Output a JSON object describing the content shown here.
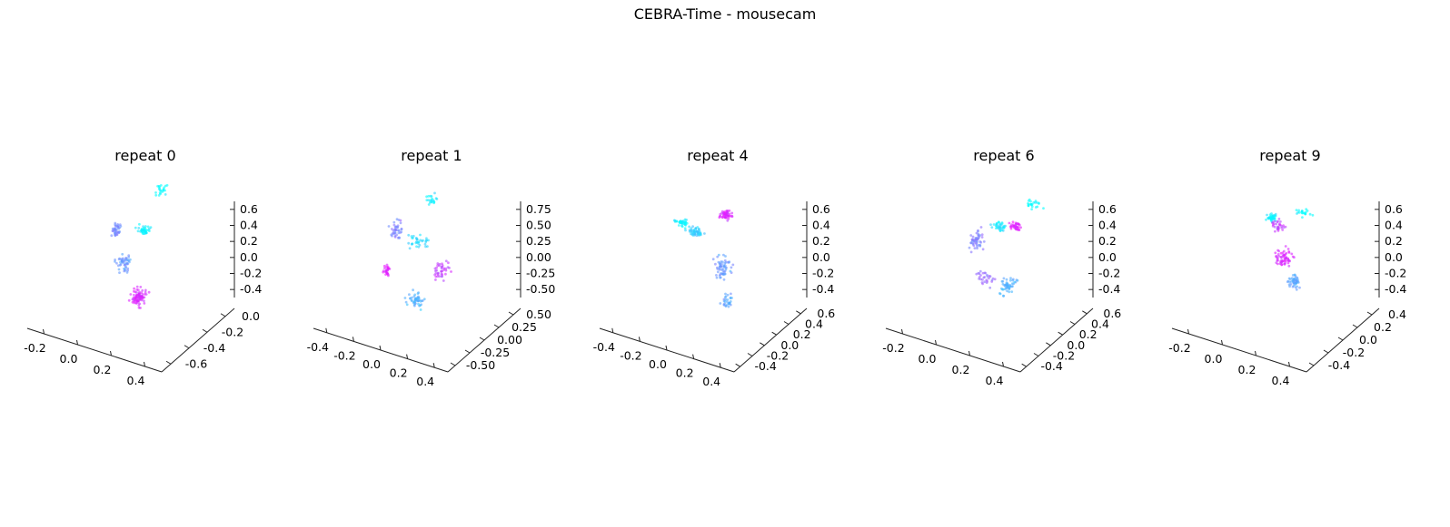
{
  "figure": {
    "title": "CEBRA-Time - mousecam"
  },
  "chart_data": [
    {
      "type": "scatter",
      "title": "repeat 0",
      "colormap": [
        "#00ffff",
        "#ff00ff"
      ],
      "x_ticks": [
        "-0.2",
        "0.0",
        "0.2",
        "0.4"
      ],
      "y_ticks": [
        "-0.6",
        "-0.4",
        "-0.2",
        "0.0"
      ],
      "z_ticks": [
        "-0.4",
        "-0.2",
        "0.0",
        "0.2",
        "0.4",
        "0.6"
      ],
      "clusters": [
        {
          "x": -0.22,
          "y": 0.1,
          "z": 0.12,
          "n": 40,
          "c": 0.45,
          "sx": 0.03,
          "sy": 0.05,
          "sz": 0.06
        },
        {
          "x": 0.08,
          "y": 0.1,
          "z": 0.22,
          "n": 40,
          "c": 0.05,
          "sx": 0.06,
          "sy": 0.04,
          "sz": 0.03
        },
        {
          "x": 0.15,
          "y": 0.35,
          "z": 0.62,
          "n": 22,
          "c": 0.0,
          "sx": 0.05,
          "sy": 0.05,
          "sz": 0.05
        },
        {
          "x": 0.02,
          "y": -0.2,
          "z": -0.05,
          "n": 50,
          "c": 0.4,
          "sx": 0.06,
          "sy": 0.08,
          "sz": 0.07
        },
        {
          "x": 0.3,
          "y": -0.45,
          "z": -0.25,
          "n": 80,
          "c": 0.85,
          "sx": 0.06,
          "sy": 0.07,
          "sz": 0.07
        }
      ]
    },
    {
      "type": "scatter",
      "title": "repeat 1",
      "colormap": [
        "#00ffff",
        "#ff00ff"
      ],
      "x_ticks": [
        "-0.4",
        "-0.2",
        "0.0",
        "0.2",
        "0.4"
      ],
      "y_ticks": [
        "-0.50",
        "-0.25",
        "0.00",
        "0.25",
        "0.50"
      ],
      "z_ticks": [
        "-0.50",
        "-0.25",
        "0.00",
        "0.25",
        "0.50",
        "0.75"
      ],
      "clusters": [
        {
          "x": -0.3,
          "y": 0.1,
          "z": 0.1,
          "n": 40,
          "c": 0.5,
          "sx": 0.05,
          "sy": 0.06,
          "sz": 0.08
        },
        {
          "x": -0.3,
          "y": -0.1,
          "z": -0.3,
          "n": 25,
          "c": 0.9,
          "sx": 0.03,
          "sy": 0.03,
          "sz": 0.05
        },
        {
          "x": 0.05,
          "y": 0.2,
          "z": 0.55,
          "n": 20,
          "c": 0.05,
          "sx": 0.05,
          "sy": 0.05,
          "sz": 0.05
        },
        {
          "x": 0.0,
          "y": 0.0,
          "z": 0.1,
          "n": 35,
          "c": 0.15,
          "sx": 0.08,
          "sy": 0.06,
          "sz": 0.06
        },
        {
          "x": 0.3,
          "y": -0.1,
          "z": -0.1,
          "n": 40,
          "c": 0.75,
          "sx": 0.05,
          "sy": 0.08,
          "sz": 0.08
        },
        {
          "x": 0.15,
          "y": -0.35,
          "z": -0.4,
          "n": 50,
          "c": 0.3,
          "sx": 0.08,
          "sy": 0.05,
          "sz": 0.05
        }
      ]
    },
    {
      "type": "scatter",
      "title": "repeat 4",
      "colormap": [
        "#00ffff",
        "#ff00ff"
      ],
      "x_ticks": [
        "-0.4",
        "-0.2",
        "0.0",
        "0.2",
        "0.4"
      ],
      "y_ticks": [
        "-0.4",
        "-0.2",
        "0.0",
        "0.2",
        "0.4",
        "0.6"
      ],
      "z_ticks": [
        "-0.4",
        "-0.2",
        "0.0",
        "0.2",
        "0.4",
        "0.6"
      ],
      "clusters": [
        {
          "x": -0.35,
          "y": 0.2,
          "z": 0.12,
          "n": 40,
          "c": 0.05,
          "sx": 0.06,
          "sy": 0.04,
          "sz": 0.03
        },
        {
          "x": -0.15,
          "y": 0.1,
          "z": 0.12,
          "n": 50,
          "c": 0.2,
          "sx": 0.06,
          "sy": 0.05,
          "sz": 0.04
        },
        {
          "x": 0.1,
          "y": 0.3,
          "z": 0.3,
          "n": 50,
          "c": 0.85,
          "sx": 0.04,
          "sy": 0.05,
          "sz": 0.04
        },
        {
          "x": 0.25,
          "y": -0.1,
          "z": -0.1,
          "n": 60,
          "c": 0.4,
          "sx": 0.06,
          "sy": 0.1,
          "sz": 0.1
        },
        {
          "x": 0.4,
          "y": -0.3,
          "z": -0.35,
          "n": 30,
          "c": 0.35,
          "sx": 0.04,
          "sy": 0.06,
          "sz": 0.06
        }
      ]
    },
    {
      "type": "scatter",
      "title": "repeat 6",
      "colormap": [
        "#00ffff",
        "#ff00ff"
      ],
      "x_ticks": [
        "-0.2",
        "0.0",
        "0.2",
        "0.4"
      ],
      "y_ticks": [
        "-0.4",
        "-0.2",
        "0.0",
        "0.2",
        "0.4",
        "0.6"
      ],
      "z_ticks": [
        "-0.4",
        "-0.2",
        "0.0",
        "0.2",
        "0.4",
        "0.6"
      ],
      "clusters": [
        {
          "x": -0.2,
          "y": 0.1,
          "z": 0.0,
          "n": 50,
          "c": 0.5,
          "sx": 0.05,
          "sy": 0.08,
          "sz": 0.08
        },
        {
          "x": 0.0,
          "y": 0.2,
          "z": 0.18,
          "n": 35,
          "c": 0.1,
          "sx": 0.06,
          "sy": 0.04,
          "sz": 0.03
        },
        {
          "x": 0.15,
          "y": 0.25,
          "z": 0.2,
          "n": 35,
          "c": 0.9,
          "sx": 0.04,
          "sy": 0.04,
          "sz": 0.04
        },
        {
          "x": 0.25,
          "y": 0.45,
          "z": 0.4,
          "n": 22,
          "c": 0.0,
          "sx": 0.07,
          "sy": 0.05,
          "sz": 0.04
        },
        {
          "x": 0.3,
          "y": -0.2,
          "z": -0.25,
          "n": 50,
          "c": 0.3,
          "sx": 0.05,
          "sy": 0.08,
          "sz": 0.08
        },
        {
          "x": 0.0,
          "y": -0.1,
          "z": -0.3,
          "n": 30,
          "c": 0.6,
          "sx": 0.07,
          "sy": 0.07,
          "sz": 0.07
        }
      ]
    },
    {
      "type": "scatter",
      "title": "repeat 9",
      "colormap": [
        "#00ffff",
        "#ff00ff"
      ],
      "x_ticks": [
        "-0.2",
        "0.0",
        "0.2",
        "0.4"
      ],
      "y_ticks": [
        "-0.4",
        "-0.2",
        "0.0",
        "0.2",
        "0.4"
      ],
      "z_ticks": [
        "-0.4",
        "-0.2",
        "0.0",
        "0.2",
        "0.4",
        "0.6"
      ],
      "clusters": [
        {
          "x": -0.15,
          "y": 0.2,
          "z": 0.25,
          "n": 40,
          "c": 0.05,
          "sx": 0.05,
          "sy": 0.04,
          "sz": 0.04
        },
        {
          "x": -0.05,
          "y": 0.15,
          "z": 0.2,
          "n": 30,
          "c": 0.75,
          "sx": 0.06,
          "sy": 0.05,
          "sz": 0.05
        },
        {
          "x": 0.15,
          "y": 0.3,
          "z": 0.35,
          "n": 20,
          "c": 0.0,
          "sx": 0.07,
          "sy": 0.04,
          "sz": 0.03
        },
        {
          "x": 0.1,
          "y": -0.05,
          "z": -0.05,
          "n": 60,
          "c": 0.85,
          "sx": 0.07,
          "sy": 0.07,
          "sz": 0.08
        },
        {
          "x": 0.3,
          "y": -0.2,
          "z": -0.2,
          "n": 50,
          "c": 0.35,
          "sx": 0.05,
          "sy": 0.06,
          "sz": 0.06
        }
      ]
    }
  ]
}
